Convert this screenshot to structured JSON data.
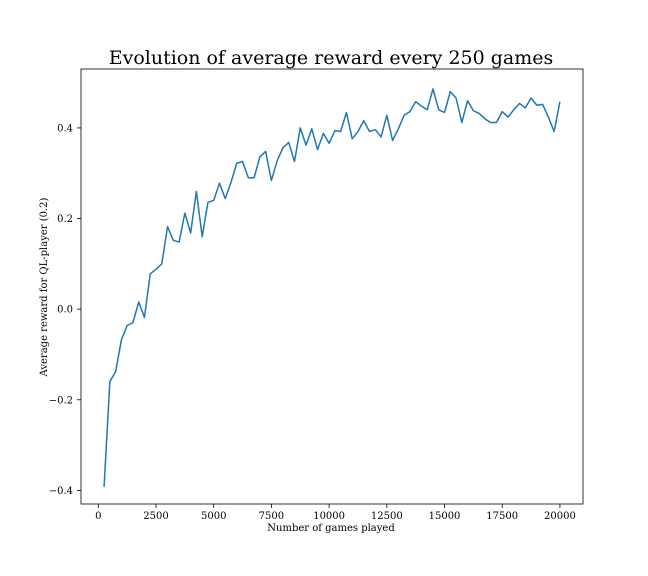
{
  "chart_data": {
    "type": "line",
    "title": "Evolution of average reward every 250 games",
    "xlabel": "Number of games played",
    "ylabel": "Average reward for QL-player (0.2)",
    "xlim": [
      -750,
      21000
    ],
    "ylim": [
      -0.43,
      0.53
    ],
    "xticks": [
      0,
      2500,
      5000,
      7500,
      10000,
      12500,
      15000,
      17500,
      20000
    ],
    "xtick_labels": [
      "0",
      "2500",
      "5000",
      "7500",
      "10000",
      "12500",
      "15000",
      "17500",
      "20000"
    ],
    "yticks": [
      -0.4,
      -0.2,
      0.0,
      0.2,
      0.4
    ],
    "ytick_labels": [
      "−0.4",
      "−0.2",
      "0.0",
      "0.2",
      "0.4"
    ],
    "grid": false,
    "line_color": "#1f77b4",
    "series": [
      {
        "x": [
          250,
          500,
          750,
          1000,
          1250,
          1500,
          1750,
          2000,
          2250,
          2500,
          2750,
          3000,
          3250,
          3500,
          3750,
          4000,
          4250,
          4500,
          4750,
          5000,
          5250,
          5500,
          5750,
          6000,
          6250,
          6500,
          6750,
          7000,
          7250,
          7500,
          7750,
          8000,
          8250,
          8500,
          8750,
          9000,
          9250,
          9500,
          9750,
          10000,
          10250,
          10500,
          10750,
          11000,
          11250,
          11500,
          11750,
          12000,
          12250,
          12500,
          12750,
          13000,
          13250,
          13500,
          13750,
          14000,
          14250,
          14500,
          14750,
          15000,
          15250,
          15500,
          15750,
          16000,
          16250,
          16500,
          16750,
          17000,
          17250,
          17500,
          17750,
          18000,
          18250,
          18500,
          18750,
          19000,
          19250,
          19500,
          19750,
          20000
        ],
        "y": [
          -0.392,
          -0.16,
          -0.138,
          -0.068,
          -0.036,
          -0.03,
          0.016,
          -0.018,
          0.078,
          0.088,
          0.1,
          0.182,
          0.152,
          0.148,
          0.212,
          0.168,
          0.26,
          0.16,
          0.236,
          0.24,
          0.278,
          0.244,
          0.28,
          0.322,
          0.326,
          0.29,
          0.29,
          0.336,
          0.348,
          0.284,
          0.328,
          0.356,
          0.368,
          0.326,
          0.4,
          0.362,
          0.398,
          0.352,
          0.388,
          0.366,
          0.394,
          0.392,
          0.434,
          0.376,
          0.392,
          0.416,
          0.392,
          0.396,
          0.38,
          0.428,
          0.372,
          0.398,
          0.428,
          0.436,
          0.458,
          0.448,
          0.44,
          0.486,
          0.44,
          0.434,
          0.48,
          0.466,
          0.412,
          0.46,
          0.438,
          0.432,
          0.42,
          0.412,
          0.412,
          0.436,
          0.424,
          0.44,
          0.454,
          0.444,
          0.466,
          0.45,
          0.452,
          0.424,
          0.392,
          0.458
        ]
      }
    ]
  }
}
